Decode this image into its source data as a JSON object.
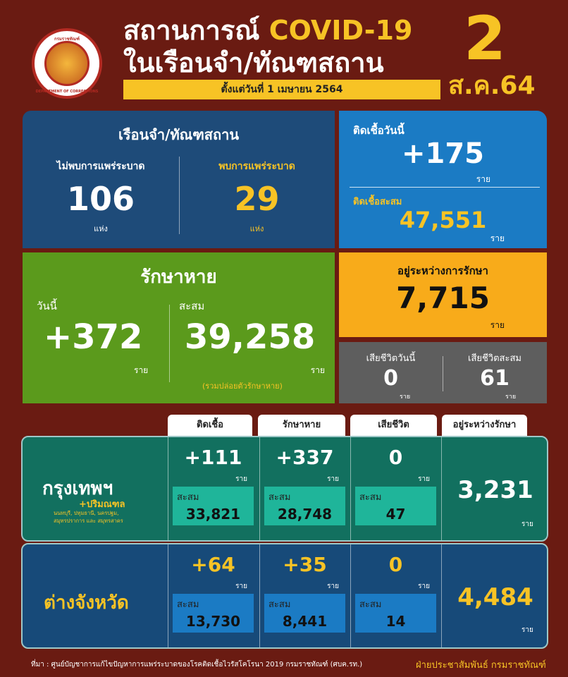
{
  "logo": {
    "top_text": "กรมราชทัณฑ์",
    "bottom_text": "DEPARTMENT OF CORRECTIONS"
  },
  "header": {
    "title_line1": "สถานการณ์",
    "title_covid": "COVID-19",
    "title_line2": "ในเรือนจำ/ทัณฑสถาน",
    "since": "ตั้งแต่วันที่ 1 เมษายน 2564",
    "date_day": "2",
    "date_month_year": "ส.ค.64"
  },
  "colors": {
    "background": "#6a1b12",
    "accent_yellow": "#f7c325",
    "prison_panel": "#1e4b79",
    "infected_panel": "#1b7bc4",
    "recovered_panel": "#5b9a1c",
    "treating_panel": "#f8ab1a",
    "death_panel": "#5e5e5e",
    "bangkok_row": "#12705f",
    "province_row": "#174a79"
  },
  "prisons": {
    "title": "เรือนจำ/ทัณฑสถาน",
    "no_outbreak_label": "ไม่พบการแพร่ระบาด",
    "no_outbreak_value": "106",
    "outbreak_label": "พบการแพร่ระบาด",
    "outbreak_value": "29",
    "unit": "แห่ง"
  },
  "infected": {
    "today_label": "ติดเชื้อวันนี้",
    "today_value": "+175",
    "total_label": "ติดเชื้อสะสม",
    "total_value": "47,551",
    "unit": "ราย"
  },
  "recovered": {
    "title": "รักษาหาย",
    "today_label": "วันนี้",
    "today_value": "+372",
    "total_label": "สะสม",
    "total_value": "39,258",
    "note": "(รวมปล่อยตัวรักษาหาย)",
    "unit": "ราย"
  },
  "treating": {
    "label": "อยู่ระหว่างการรักษา",
    "value": "7,715",
    "unit": "ราย"
  },
  "deaths": {
    "today_label": "เสียชีวิตวันนี้",
    "today_value": "0",
    "total_label": "เสียชีวิตสะสม",
    "total_value": "61",
    "unit": "ราย"
  },
  "table": {
    "headers": [
      "ติดเชื้อ",
      "รักษาหาย",
      "เสียชีวิต",
      "อยู่ระหว่างรักษา"
    ],
    "unit": "ราย",
    "cumulative_label": "สะสม",
    "rows": [
      {
        "name": "กรุงเทพฯ",
        "sub": "+ปริมณฑล",
        "provinces1": "นนทบุรี, ปทุมธานี, นครปฐม,",
        "provinces2": "สมุทรปราการ และ สมุทรสาคร",
        "cells": [
          {
            "today": "+111",
            "total": "33,821"
          },
          {
            "today": "+337",
            "total": "28,748"
          },
          {
            "today": "0",
            "total": "47"
          }
        ],
        "treating": "3,231"
      },
      {
        "name": "ต่างจังหวัด",
        "cells": [
          {
            "today": "+64",
            "total": "13,730"
          },
          {
            "today": "+35",
            "total": "8,441"
          },
          {
            "today": "0",
            "total": "14"
          }
        ],
        "treating": "4,484"
      }
    ]
  },
  "footer": {
    "source": "ที่มา : ศูนย์บัญชาการแก้ไขปัญหาการแพร่ระบาดของโรคติดเชื้อไวรัสโคโรนา 2019 กรมราชทัณฑ์ (ศบค.รท.)",
    "credit": "ฝ่ายประชาสัมพันธ์ กรมราชทัณฑ์"
  }
}
